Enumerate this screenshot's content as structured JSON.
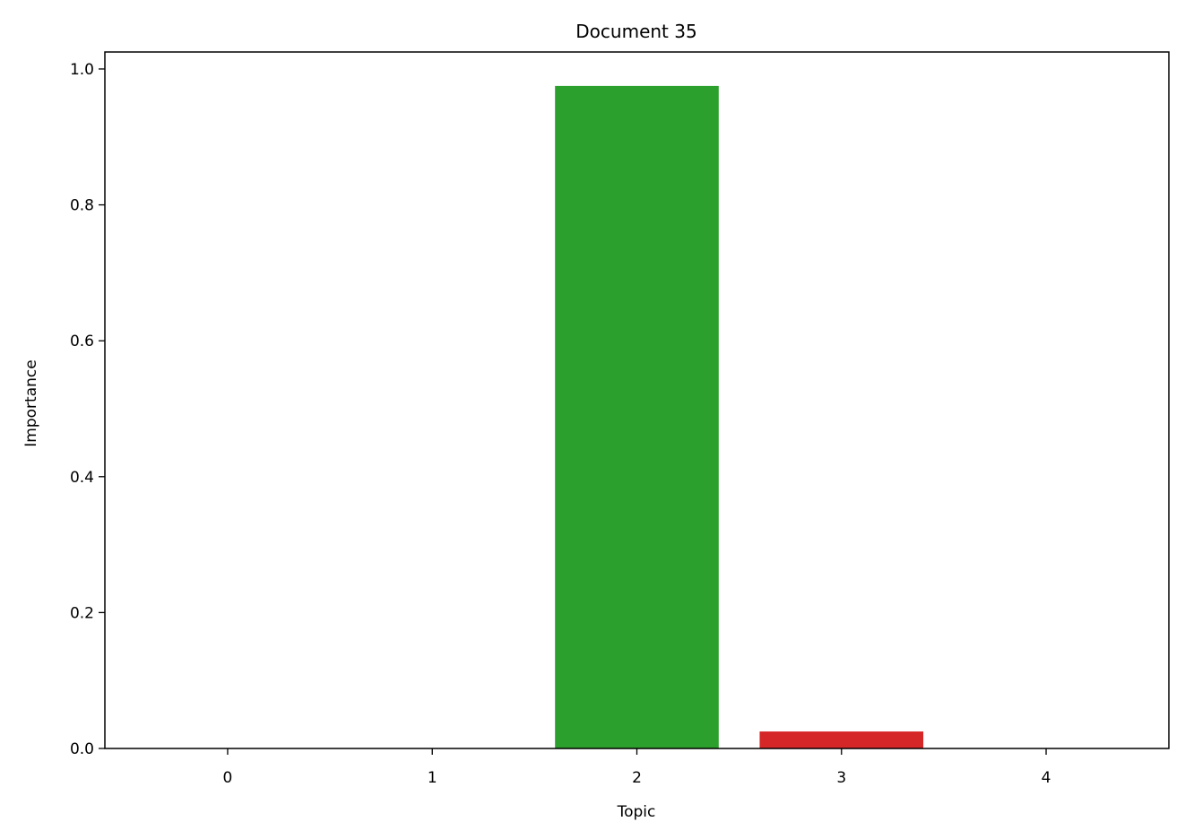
{
  "chart_data": {
    "type": "bar",
    "title": "Document 35",
    "xlabel": "Topic",
    "ylabel": "Importance",
    "categories": [
      "0",
      "1",
      "2",
      "3",
      "4"
    ],
    "values": [
      0.0,
      0.0,
      0.975,
      0.025,
      0.0
    ],
    "colors": [
      "#1f77b4",
      "#ff7f0e",
      "#2ca02c",
      "#d62728",
      "#9467bd"
    ],
    "ylim": [
      0,
      1.025
    ],
    "yticks": [
      0.0,
      0.2,
      0.4,
      0.6,
      0.8,
      1.0
    ],
    "ytick_labels": [
      "0.0",
      "0.2",
      "0.4",
      "0.6",
      "0.8",
      "1.0"
    ],
    "grid": false,
    "legend": "none"
  }
}
